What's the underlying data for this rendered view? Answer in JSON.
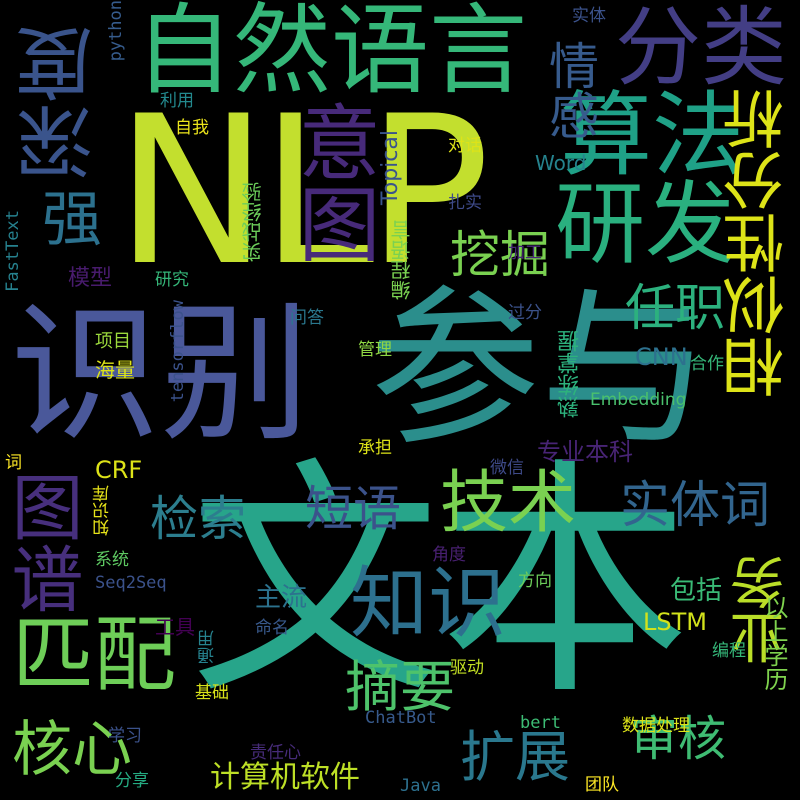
{
  "words": [
    {
      "text": "文本",
      "color": "#27a58a"
    },
    {
      "text": "NLP",
      "color": "#c3df2e"
    },
    {
      "text": "参与",
      "color": "#2b8e8c"
    },
    {
      "text": "识别",
      "color": "#4a589a"
    },
    {
      "text": "自然语言",
      "color": "#35b779"
    },
    {
      "text": "分类",
      "color": "#433e85"
    },
    {
      "text": "算法",
      "color": "#1fa187"
    },
    {
      "text": "研发",
      "color": "#2ab07f"
    },
    {
      "text": "深度",
      "color": "#3a548c"
    },
    {
      "text": "意图",
      "color": "#472a7a"
    },
    {
      "text": "相似性分析",
      "color": "#dde318"
    },
    {
      "text": "强",
      "color": "#2c718e"
    },
    {
      "text": "情感",
      "color": "#375b8d"
    },
    {
      "text": "挖掘",
      "color": "#7ad151"
    },
    {
      "text": "任职",
      "color": "#2cb17e"
    },
    {
      "text": "技术",
      "color": "#7ad151"
    },
    {
      "text": "知识",
      "color": "#2d708e"
    },
    {
      "text": "匹配",
      "color": "#6ece58"
    },
    {
      "text": "图谱",
      "color": "#472f7d"
    },
    {
      "text": "摘要",
      "color": "#4ec36b"
    },
    {
      "text": "短语",
      "color": "#3b528b"
    },
    {
      "text": "检索",
      "color": "#2c7e8e"
    },
    {
      "text": "实体词",
      "color": "#32658e"
    },
    {
      "text": "业务",
      "color": "#bade28"
    },
    {
      "text": "核心",
      "color": "#7ad151"
    },
    {
      "text": "扩展",
      "color": "#2a788e"
    },
    {
      "text": "审核",
      "color": "#3fbc73"
    },
    {
      "text": "模型",
      "color": "#481b6d"
    },
    {
      "text": "专业本科",
      "color": "#482475"
    },
    {
      "text": "主流",
      "color": "#2c728e"
    },
    {
      "text": "包括",
      "color": "#3aba76"
    },
    {
      "text": "LSTM",
      "color": "#d2e21b"
    },
    {
      "text": "计算机软件",
      "color": "#bddf26"
    },
    {
      "text": "以上学历",
      "color": "#7fd34e"
    },
    {
      "text": "CRF",
      "color": "#dde318"
    },
    {
      "text": "CNN",
      "color": "#2d718e"
    },
    {
      "text": "Embedding",
      "color": "#4ac16d"
    },
    {
      "text": "Word",
      "color": "#25838e"
    },
    {
      "text": "Topical",
      "color": "#3a548c"
    },
    {
      "text": "熟练掌握",
      "color": "#2db27d"
    },
    {
      "text": "编程语言",
      "color": "#7ad151"
    },
    {
      "text": "实战经验",
      "color": "#6ccd5a"
    },
    {
      "text": "FastText",
      "color": "#26818e"
    },
    {
      "text": "tensorflow",
      "color": "#3b528b"
    },
    {
      "text": "python",
      "color": "#365c8d"
    },
    {
      "text": "Seq2Seq",
      "color": "#3b528b"
    },
    {
      "text": "ChatBot",
      "color": "#375a8c"
    },
    {
      "text": "bert",
      "color": "#3dbc74"
    },
    {
      "text": "Java",
      "color": "#2d708e"
    },
    {
      "text": "知识库",
      "color": "#e7e419"
    },
    {
      "text": "工具",
      "color": "#440154"
    },
    {
      "text": "命名",
      "color": "#38598c"
    },
    {
      "text": "编程",
      "color": "#35b779"
    },
    {
      "text": "方向",
      "color": "#6ccd5a"
    },
    {
      "text": "角度",
      "color": "#482071"
    },
    {
      "text": "驱动",
      "color": "#c2df23"
    },
    {
      "text": "通用",
      "color": "#26828e"
    },
    {
      "text": "基础",
      "color": "#d8e219"
    },
    {
      "text": "数据处理",
      "color": "#dde318"
    },
    {
      "text": "学习",
      "color": "#3b528b"
    },
    {
      "text": "责任心",
      "color": "#472c7a"
    },
    {
      "text": "分享",
      "color": "#25ab82"
    },
    {
      "text": "团队",
      "color": "#fde725"
    },
    {
      "text": "系统",
      "color": "#5ec962"
    },
    {
      "text": "承担",
      "color": "#dde318"
    },
    {
      "text": "微信",
      "color": "#3e4a89"
    },
    {
      "text": "合作",
      "color": "#35b779"
    },
    {
      "text": "海量",
      "color": "#dde318"
    },
    {
      "text": "项目",
      "color": "#9bd93c"
    },
    {
      "text": "管理",
      "color": "#8fd744"
    },
    {
      "text": "问答",
      "color": "#2a788e"
    },
    {
      "text": "过分",
      "color": "#3b528b"
    },
    {
      "text": "加工",
      "color": "#482878"
    },
    {
      "text": "研究",
      "color": "#35b779"
    },
    {
      "text": "扎实",
      "color": "#3e4a89"
    },
    {
      "text": "对话",
      "color": "#dde318"
    },
    {
      "text": "自我",
      "color": "#ece51b"
    },
    {
      "text": "利用",
      "color": "#23898e"
    },
    {
      "text": "实体",
      "color": "#3b528b"
    },
    {
      "text": "词",
      "color": "#fde725"
    }
  ]
}
